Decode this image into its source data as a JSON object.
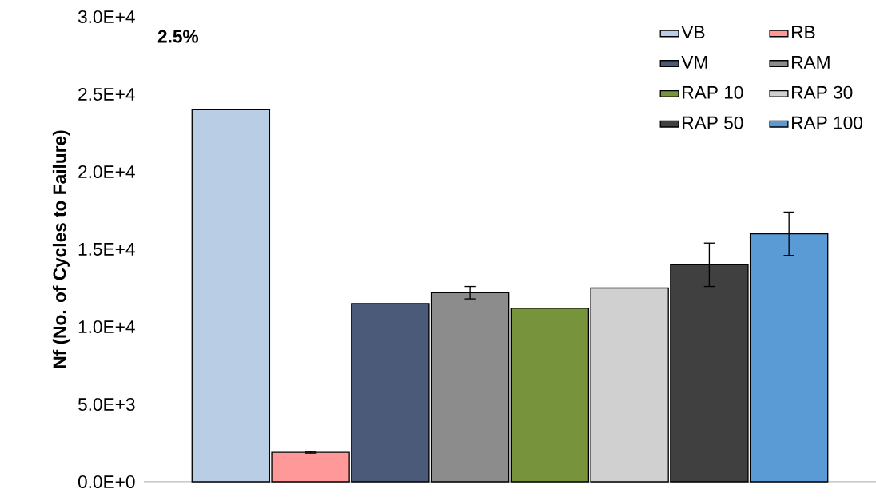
{
  "chart_data": {
    "type": "bar",
    "categories": [
      null
    ],
    "ylabel": "Nf (No. of Cycles to Failure)",
    "annotations": [
      "2.5%"
    ],
    "ylim": [
      0,
      30000
    ],
    "yticks": [
      {
        "value": 0,
        "label": "0.0E+0"
      },
      {
        "value": 5000,
        "label": "5.0E+3"
      },
      {
        "value": 10000,
        "label": "1.0E+4"
      },
      {
        "value": 15000,
        "label": "1.5E+4"
      },
      {
        "value": 20000,
        "label": "2.0E+4"
      },
      {
        "value": 25000,
        "label": "2.5E+4"
      },
      {
        "value": 30000,
        "label": "3.0E+4"
      }
    ],
    "legend": "top right",
    "grid": false,
    "series": [
      {
        "name": "VB",
        "color": "#b9cde5",
        "values": [
          24000
        ]
      },
      {
        "name": "RB",
        "color": "#ff9999",
        "values": [
          1900
        ],
        "errors": [
          50
        ]
      },
      {
        "name": "VM",
        "color": "#4a5a78",
        "values": [
          11500
        ]
      },
      {
        "name": "RAM",
        "color": "#8c8c8c",
        "values": [
          12200
        ],
        "errors": [
          400
        ]
      },
      {
        "name": "RAP 10",
        "color": "#77933c",
        "values": [
          11200
        ]
      },
      {
        "name": "RAP 30",
        "color": "#d0d0d0",
        "values": [
          12500
        ]
      },
      {
        "name": "RAP 50",
        "color": "#404040",
        "values": [
          14000
        ],
        "errors": [
          1400
        ]
      },
      {
        "name": "RAP 100",
        "color": "#5b9bd5",
        "values": [
          16000
        ],
        "errors": [
          1400
        ]
      }
    ]
  }
}
